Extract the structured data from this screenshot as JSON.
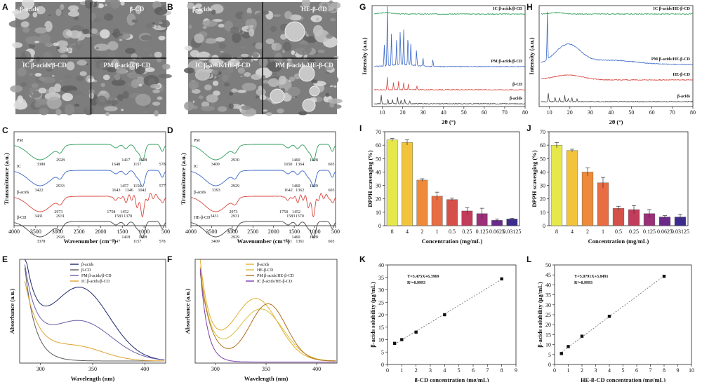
{
  "panels": {
    "A": "A",
    "B": "B",
    "C": "C",
    "D": "D",
    "E": "E",
    "F": "F",
    "G": "G",
    "H": "H",
    "I": "I",
    "J": "J",
    "K": "K",
    "L": "L"
  },
  "sem": {
    "A": [
      "β-acids",
      "β-CD",
      "IC β-acids/β-CD",
      "PM β-acids/β-CD"
    ],
    "B": [
      "β-acids",
      "HE-β-CD",
      "IC β-acids/HE-β-CD",
      "PM β-acids/HE-β-CD"
    ]
  },
  "chart_data": [
    {
      "panel": "C",
      "type": "line",
      "xlabel": "Wavenumber (cm⁻¹)",
      "ylabel": "Transmittance (a.u.)",
      "xticks": [
        "4000",
        "3500",
        "3000",
        "2500",
        "2000",
        "1500",
        "1000",
        "500"
      ],
      "series": [
        {
          "name": "PM",
          "color": "#2e9e5b",
          "peaks": [
            "3380",
            "2928",
            "1648",
            "1417",
            "1157",
            "1028",
            "578"
          ]
        },
        {
          "name": "IC",
          "color": "#3a68c8",
          "peaks": [
            "3422",
            "2933",
            "1643",
            "1457",
            "1346",
            "1156",
            "1042",
            "577"
          ]
        },
        {
          "name": "β-acids",
          "color": "#d9473f",
          "peaks": [
            "3431",
            "2973",
            "2931",
            "1758",
            "1583",
            "1452",
            "1370"
          ]
        },
        {
          "name": "β-CD",
          "color": "#444444",
          "peaks": [
            "3378",
            "2926",
            "1647",
            "1418",
            "1157",
            "1028",
            "578"
          ]
        }
      ]
    },
    {
      "panel": "D",
      "type": "line",
      "xlabel": "Wavenumber (cm⁻¹)",
      "ylabel": "Transmittance (a.u.)",
      "xticks": [
        "4000",
        "3500",
        "3000",
        "2500",
        "2000",
        "1500",
        "1000",
        "500"
      ],
      "series": [
        {
          "name": "PM",
          "color": "#2e9e5b",
          "peaks": [
            "3409",
            "2930",
            "1650",
            "1460",
            "1364",
            "1028",
            "603"
          ]
        },
        {
          "name": "IC",
          "color": "#3a68c8",
          "peaks": [
            "3393",
            "2929",
            "1642",
            "1460",
            "1362",
            "1029",
            "603"
          ]
        },
        {
          "name": "β-acids",
          "color": "#d9473f",
          "peaks": [
            "3431",
            "2973",
            "2931",
            "1758",
            "1583",
            "1452",
            "1370"
          ]
        },
        {
          "name": "HE-β-CD",
          "color": "#444444",
          "peaks": [
            "3409",
            "2929",
            "1651",
            "1460",
            "1361",
            "1028",
            "603"
          ]
        }
      ]
    },
    {
      "panel": "E",
      "type": "line",
      "xlabel": "Wavelength (nm)",
      "ylabel": "Absorbance (a.u.)",
      "xticks": [
        "300",
        "350",
        "400"
      ],
      "legend": [
        "β-acids",
        "β-CD",
        "PM β-acids/β-CD",
        "IC β-acids/β-CD"
      ],
      "colors": [
        "#1f2a6b",
        "#5c5c5c",
        "#6b5ea8",
        "#e0a030"
      ]
    },
    {
      "panel": "F",
      "type": "line",
      "xlabel": "Wavelength (nm)",
      "ylabel": "Absorbance (a.u.)",
      "xticks": [
        "300",
        "350",
        "400"
      ],
      "legend": [
        "β-acids",
        "HE-β-CD",
        "PM β-acids/HE-β-CD",
        "IC β-acids/HE-β-CD"
      ],
      "colors": [
        "#e0b030",
        "#d8c040",
        "#b07020",
        "#7a3fb0"
      ]
    },
    {
      "panel": "G",
      "type": "line",
      "xlabel": "2θ (°)",
      "ylabel": "Intensity (a.u.)",
      "xticks": [
        "10",
        "20",
        "30",
        "40",
        "50",
        "60",
        "70",
        "80"
      ],
      "series": [
        {
          "name": "IC β-acids/β-CD",
          "color": "#2e9e5b"
        },
        {
          "name": "PM β-acids/β-CD",
          "color": "#3a68c8"
        },
        {
          "name": "β-CD",
          "color": "#d9473f"
        },
        {
          "name": "β-acids",
          "color": "#444444"
        }
      ]
    },
    {
      "panel": "H",
      "type": "line",
      "xlabel": "2θ (°)",
      "ylabel": "Intensity (a.u.)",
      "xticks": [
        "10",
        "20",
        "30",
        "40",
        "50",
        "60",
        "70",
        "80"
      ],
      "series": [
        {
          "name": "IC β-acids/HE-β-CD",
          "color": "#2e9e5b"
        },
        {
          "name": "PM β-acids/HE-β-CD",
          "color": "#3a68c8"
        },
        {
          "name": "HE-β-CD",
          "color": "#d9473f"
        },
        {
          "name": "β-acids",
          "color": "#444444"
        }
      ]
    },
    {
      "panel": "I",
      "type": "bar",
      "xlabel": "Concentration (mg/mL)",
      "ylabel": "DPPH scavenging (%)",
      "categories": [
        "8",
        "4",
        "2",
        "1",
        "0.5",
        "0.25",
        "0.125",
        "0.0625",
        "0.03125"
      ],
      "values": [
        64,
        62,
        34,
        22,
        19.5,
        11,
        9,
        4,
        5
      ],
      "errors": [
        1,
        2,
        1,
        3,
        1,
        2.5,
        4,
        1,
        0.5
      ],
      "colors": [
        "#e6e84a",
        "#f2c43c",
        "#ee8a3a",
        "#e86d42",
        "#d6504a",
        "#c23c5b",
        "#9b2f78",
        "#6b2a8a",
        "#3c2a8c"
      ],
      "ylim": [
        0,
        70
      ],
      "yticks": [
        "0",
        "10",
        "20",
        "30",
        "40",
        "50",
        "60",
        "70"
      ]
    },
    {
      "panel": "J",
      "type": "bar",
      "xlabel": "Concentration (mg/mL)",
      "ylabel": "DPPH scavenging (%)",
      "categories": [
        "8",
        "4",
        "2",
        "1",
        "0.5",
        "0.25",
        "0.125",
        "0.0625",
        "0.03125"
      ],
      "values": [
        60,
        56,
        40,
        32,
        13,
        12,
        9,
        6.5,
        6.5
      ],
      "errors": [
        2,
        1,
        3,
        4,
        1.5,
        3,
        3,
        1,
        2
      ],
      "colors": [
        "#e6e84a",
        "#f2c43c",
        "#ee8a3a",
        "#e86d42",
        "#d6504a",
        "#c23c5b",
        "#9b2f78",
        "#6b2a8a",
        "#3c2a8c"
      ],
      "ylim": [
        0,
        70
      ],
      "yticks": [
        "0",
        "10",
        "20",
        "30",
        "40",
        "50",
        "60",
        "70"
      ]
    },
    {
      "panel": "K",
      "type": "scatter",
      "xlabel": "β-CD concentration (mg/mL)",
      "ylabel": "β-acids solubility (μg/mL)",
      "equation": "Y=3.475X+6.3969",
      "r2": "R²=0.9993",
      "x": [
        0.5,
        1,
        2,
        4,
        8
      ],
      "y": [
        8.5,
        10,
        13,
        20,
        34.4
      ],
      "xlim": [
        0,
        9
      ],
      "ylim": [
        0,
        40
      ],
      "xticks": [
        "0",
        "1",
        "2",
        "3",
        "4",
        "5",
        "6",
        "7",
        "8",
        "9"
      ],
      "yticks": [
        "0",
        "5",
        "10",
        "15",
        "20",
        "25",
        "30",
        "35",
        "40"
      ]
    },
    {
      "panel": "L",
      "type": "scatter",
      "xlabel": "HE-β-CD concentration (mg/mL)",
      "ylabel": "β-acids solubility (μg/mL)",
      "equation": "Y=5.0791X+3.8491",
      "r2": "R²=0.9993",
      "x": [
        0.5,
        1,
        2,
        4,
        8
      ],
      "y": [
        5.5,
        9,
        14.2,
        24.2,
        44.3
      ],
      "xlim": [
        0,
        10
      ],
      "ylim": [
        0,
        50
      ],
      "xticks": [
        "0",
        "1",
        "2",
        "3",
        "4",
        "5",
        "6",
        "7",
        "8",
        "9",
        "10"
      ],
      "yticks": [
        "0",
        "5",
        "10",
        "15",
        "20",
        "25",
        "30",
        "35",
        "40",
        "45",
        "50"
      ]
    }
  ]
}
